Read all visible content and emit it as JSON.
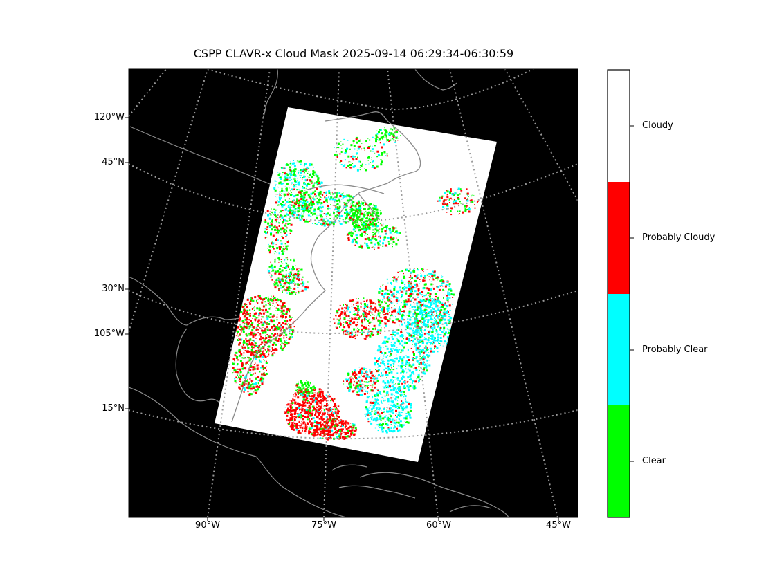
{
  "title": "CSPP CLAVR-x Cloud Mask 2025-09-14 06:29:34-06:30:59",
  "colors": {
    "background": "#000000",
    "graticule": "#9a9a9a",
    "coastline": "#8a8a8a",
    "clear": "#00ff00",
    "probably_clear": "#00ffff",
    "probably_cloudy": "#ff0000",
    "cloudy": "#ffffff"
  },
  "left_labels": [
    "120°W",
    "45°N",
    "30°N",
    "105°W",
    "15°N"
  ],
  "bottom_labels": [
    "90°W",
    "75°W",
    "60°W",
    "45°W"
  ],
  "colorbar": {
    "categories": [
      {
        "label": "Cloudy",
        "color": "#ffffff"
      },
      {
        "label": "Probably Cloudy",
        "color": "#ff0000"
      },
      {
        "label": "Probably Clear",
        "color": "#00ffff"
      },
      {
        "label": "Clear",
        "color": "#00ff00"
      }
    ]
  }
}
